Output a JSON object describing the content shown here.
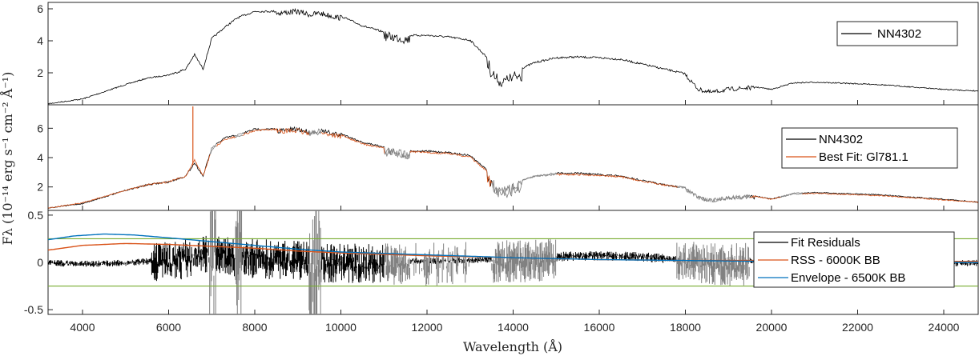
{
  "colors": {
    "observed": "#000000",
    "masked": "#808080",
    "best_fit": "#d95319",
    "rss_bb": "#d95319",
    "envelope_bb": "#0072bd",
    "threshold": "#77ac30",
    "axes": "#262626"
  },
  "xaxis": {
    "label": "Wavelength (Å)",
    "ticks": [
      "4000",
      "6000",
      "8000",
      "10000",
      "12000",
      "14000",
      "16000",
      "18000",
      "20000",
      "22000",
      "24000"
    ]
  },
  "yaxis": {
    "label": "Fλ (10⁻¹⁴ erg s⁻¹ cm⁻² Å⁻¹)"
  },
  "chart_data": [
    {
      "type": "line",
      "panel": "top",
      "xlim": [
        3200,
        24800
      ],
      "ylim": [
        0,
        6.4
      ],
      "yticks": [
        "2",
        "4",
        "6"
      ],
      "legend": {
        "location": "top-right",
        "entries": [
          "NN4302"
        ]
      },
      "series": [
        {
          "name": "NN4302",
          "x": [
            3200,
            4000,
            5000,
            5500,
            6000,
            6400,
            6600,
            6800,
            7000,
            7300,
            7600,
            8000,
            8500,
            9000,
            9300,
            9500,
            10000,
            10500,
            11000,
            11300,
            11500,
            12000,
            12500,
            13000,
            13400,
            13700,
            14000,
            14500,
            15000,
            15500,
            16000,
            16500,
            17000,
            17500,
            18000,
            18300,
            18600,
            19000,
            19500,
            20000,
            20500,
            21000,
            21500,
            22000,
            22500,
            23000,
            23500,
            24000,
            24800
          ],
          "y": [
            0.1,
            0.4,
            1.3,
            1.7,
            1.9,
            2.3,
            3.2,
            2.3,
            4.2,
            4.9,
            5.5,
            5.9,
            5.9,
            6.0,
            5.8,
            5.9,
            5.6,
            5.0,
            4.6,
            4.5,
            4.4,
            4.4,
            4.3,
            4.1,
            3.0,
            1.6,
            2.1,
            2.7,
            3.0,
            3.05,
            3.0,
            2.9,
            2.6,
            2.3,
            2.0,
            1.1,
            0.9,
            1.1,
            1.2,
            1.0,
            1.4,
            1.45,
            1.4,
            1.35,
            1.3,
            1.2,
            1.1,
            1.0,
            0.9
          ]
        }
      ]
    },
    {
      "type": "line",
      "panel": "middle",
      "xlim": [
        3200,
        24800
      ],
      "ylim": [
        0.4,
        7.6
      ],
      "yticks": [
        "2",
        "4",
        "6"
      ],
      "legend": {
        "location": "top-right",
        "entries": [
          "NN4302",
          "Best Fit: Gl781.1"
        ]
      },
      "series": [
        {
          "name": "NN4302",
          "x": [
            3200,
            4000,
            5000,
            5500,
            6000,
            6400,
            6600,
            6800,
            7000,
            7300,
            7600,
            8000,
            8500,
            9000,
            9300,
            9500,
            10000,
            10500,
            11000,
            11300,
            11500,
            12000,
            12500,
            13000,
            13400,
            13700,
            14000,
            14500,
            15000,
            15500,
            16000,
            16500,
            17000,
            17500,
            18000,
            18300,
            18600,
            19000,
            19500,
            20000,
            20500,
            21000,
            21500,
            22000,
            22500,
            23000,
            23500,
            24000,
            24800
          ],
          "y": [
            0.6,
            0.9,
            1.8,
            2.2,
            2.4,
            2.8,
            3.7,
            2.8,
            4.7,
            5.4,
            5.6,
            6.0,
            6.0,
            6.1,
            5.9,
            6.0,
            5.7,
            5.1,
            4.8,
            4.6,
            4.5,
            4.5,
            4.4,
            4.2,
            3.2,
            1.9,
            2.3,
            2.8,
            3.0,
            3.0,
            2.9,
            2.8,
            2.5,
            2.2,
            2.0,
            1.4,
            1.2,
            1.4,
            1.5,
            1.2,
            1.6,
            1.65,
            1.6,
            1.55,
            1.5,
            1.4,
            1.3,
            1.2,
            1.0
          ]
        },
        {
          "name": "Best Fit: Gl781.1",
          "x": [
            3200,
            4000,
            5000,
            5500,
            6000,
            6400,
            6600,
            6800,
            7000,
            7300,
            7600,
            8000,
            8500,
            9000,
            9300,
            9500,
            10000,
            10500,
            11000,
            11300,
            11500,
            12000,
            12500,
            13000,
            13400,
            13700,
            14000,
            14500,
            15000,
            15500,
            16000,
            16500,
            17000,
            17500,
            18000,
            18300,
            18600,
            19000,
            19500,
            20000,
            20500,
            21000,
            21500,
            22000,
            22500,
            23000,
            23500,
            24000,
            24800
          ],
          "y": [
            0.6,
            0.95,
            1.8,
            2.2,
            2.4,
            2.8,
            3.9,
            2.8,
            4.6,
            5.3,
            5.5,
            5.9,
            6.0,
            6.0,
            5.8,
            5.9,
            5.6,
            5.0,
            4.7,
            4.6,
            4.5,
            4.4,
            4.35,
            4.1,
            3.1,
            1.9,
            2.3,
            2.8,
            2.9,
            2.9,
            2.85,
            2.75,
            2.45,
            2.2,
            2.0,
            1.4,
            1.2,
            1.4,
            1.45,
            1.2,
            1.55,
            1.6,
            1.55,
            1.5,
            1.45,
            1.35,
            1.25,
            1.15,
            1.0
          ]
        }
      ]
    },
    {
      "type": "line",
      "panel": "bottom",
      "xlim": [
        3200,
        24800
      ],
      "ylim": [
        -0.55,
        0.55
      ],
      "yticks": [
        "0.5",
        "0",
        "-0.5"
      ],
      "legend": {
        "location": "right",
        "entries": [
          "Fit Residuals",
          "RSS - 6000K BB",
          "Envelope - 6500K BB"
        ]
      },
      "threshold_lines": [
        0.25,
        -0.25
      ],
      "series": [
        {
          "name": "Fit Residuals",
          "x": [
            3200,
            4000,
            5000,
            5600,
            6000,
            7000,
            8000,
            9000,
            10000,
            11000,
            12000,
            13000,
            14000,
            15000,
            16000,
            17000,
            18000,
            19000,
            20000,
            21000,
            22000,
            23000,
            24000,
            24800
          ],
          "y": [
            0.0,
            -0.01,
            0.0,
            0.02,
            0.05,
            0.12,
            0.08,
            0.05,
            0.03,
            0.02,
            0.02,
            0.03,
            0.05,
            0.07,
            0.08,
            0.07,
            0.03,
            0.02,
            0.01,
            0.0,
            0.0,
            0.01,
            0.0,
            0.0
          ]
        },
        {
          "name": "RSS - 6000K BB",
          "x": [
            3200,
            4000,
            5000,
            6000,
            7000,
            8000,
            9000,
            10000,
            12000,
            14000,
            16000,
            18000,
            20000,
            22000,
            24000,
            24800
          ],
          "y": [
            0.13,
            0.18,
            0.2,
            0.19,
            0.17,
            0.15,
            0.12,
            0.1,
            0.07,
            0.05,
            0.03,
            0.02,
            0.02,
            0.01,
            0.01,
            0.01
          ]
        },
        {
          "name": "Envelope - 6500K BB",
          "x": [
            3200,
            3800,
            4500,
            5200,
            6000,
            7000,
            8000,
            9000,
            10000,
            12000,
            14000,
            16000,
            18000,
            20000,
            22000,
            24000,
            24800
          ],
          "y": [
            0.24,
            0.28,
            0.3,
            0.29,
            0.26,
            0.22,
            0.18,
            0.14,
            0.11,
            0.08,
            0.05,
            0.03,
            0.02,
            0.01,
            0.01,
            0.0,
            0.0
          ]
        }
      ]
    }
  ]
}
